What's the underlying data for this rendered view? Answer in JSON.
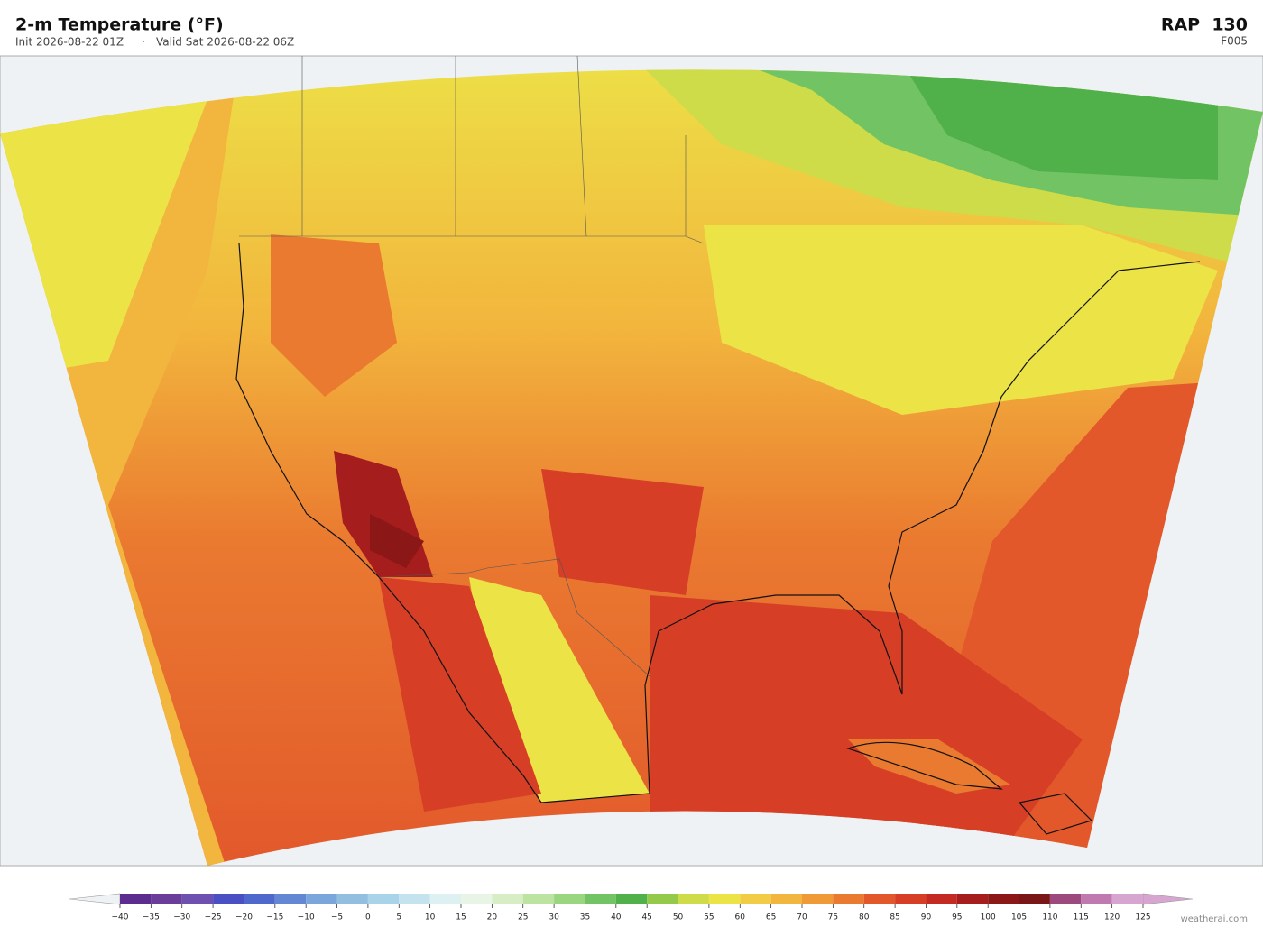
{
  "header": {
    "title": "2-m Temperature  (°F)",
    "init": "Init 2026-08-22 01Z",
    "separator": "·",
    "valid": "Valid Sat 2026-08-22 06Z",
    "model": "RAP  130",
    "forecast": "F005"
  },
  "colorbar": {
    "colors": [
      "#5b2d8e",
      "#6a3d9a",
      "#6f4fb0",
      "#4b4fc4",
      "#4f68cc",
      "#6487d4",
      "#7aa6dc",
      "#92bfe0",
      "#a9d3e8",
      "#c4e3ef",
      "#ddf0f2",
      "#e8f5e6",
      "#d7edc6",
      "#bde3a0",
      "#9ad580",
      "#72c363",
      "#50b04a",
      "#94c94a",
      "#cddc48",
      "#ece347",
      "#f3cc45",
      "#f2b53d",
      "#ef9a36",
      "#ea7a30",
      "#e2582b",
      "#d63e26",
      "#c22a22",
      "#a51d1d",
      "#8b1717",
      "#7a1616",
      "#9c4a7e",
      "#c07ab0",
      "#d6a6d0"
    ],
    "ticks": [
      {
        "value": -40,
        "label": "−40"
      },
      {
        "value": -35,
        "label": "−35"
      },
      {
        "value": -30,
        "label": "−30"
      },
      {
        "value": -25,
        "label": "−25"
      },
      {
        "value": -20,
        "label": "−20"
      },
      {
        "value": -15,
        "label": "−15"
      },
      {
        "value": -10,
        "label": "−10"
      },
      {
        "value": -5,
        "label": "−5"
      },
      0,
      5,
      10,
      15,
      20,
      25,
      30,
      35,
      40,
      45,
      50,
      55,
      60,
      65,
      70,
      75,
      80,
      85,
      90,
      95,
      100,
      105,
      110,
      115,
      120,
      125
    ]
  },
  "footer": {
    "watermark": "weatherai.com"
  }
}
